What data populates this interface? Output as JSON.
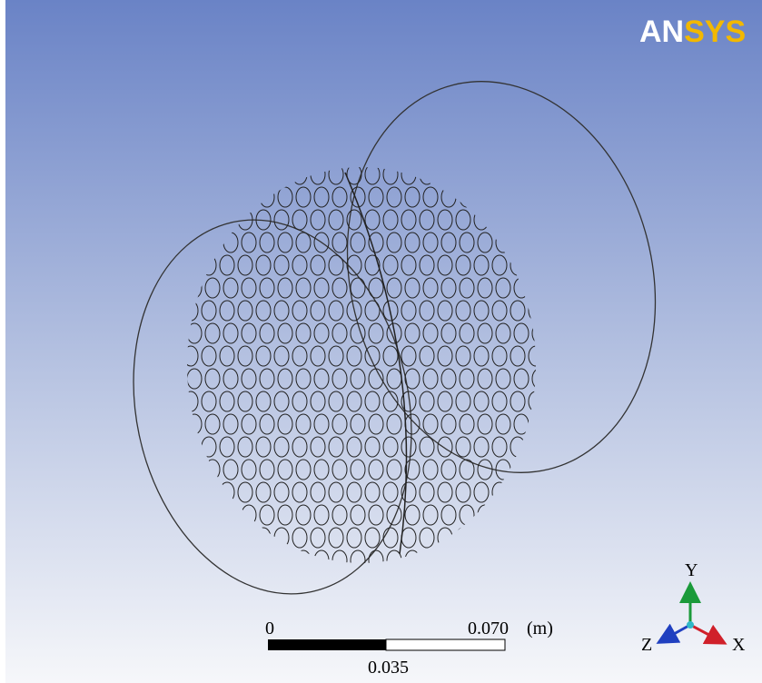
{
  "logo": {
    "prefix": "AN",
    "suffix": "SYS"
  },
  "scale_bar": {
    "start": "0",
    "end": "0.070",
    "unit": "(m)",
    "mid": "0.035"
  },
  "axes": {
    "y": "Y",
    "x": "X",
    "z": "Z"
  }
}
